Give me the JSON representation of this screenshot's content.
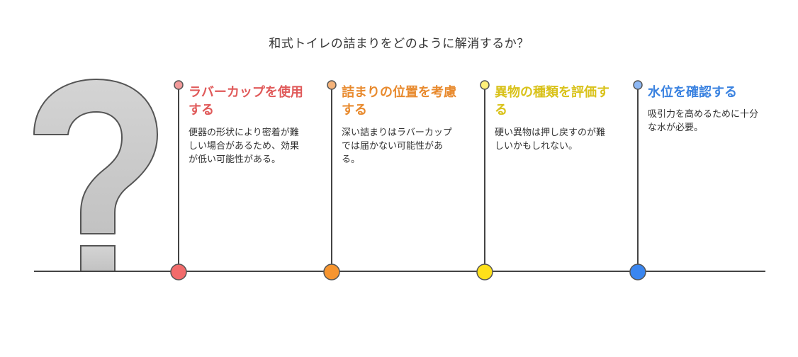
{
  "title": "和式トイレの詰まりをどのように解消するか？",
  "steps": [
    {
      "heading": "ラバーカップを使用する",
      "description": "便器の形状により密着が難しい場合があるため、効果が低い可能性がある。",
      "color": "#e05a5a",
      "node_color": "#f26b6b",
      "pin_color": "#f29a9a"
    },
    {
      "heading": "詰まりの位置を考慮する",
      "description": "深い詰まりはラバーカップでは届かない可能性がある。",
      "color": "#e88a2e",
      "node_color": "#f7952f",
      "pin_color": "#f5b37a"
    },
    {
      "heading": "異物の種類を評価する",
      "description": "硬い異物は押し戻すのが難しいかもしれない。",
      "color": "#d9c21a",
      "node_color": "#ffe11a",
      "pin_color": "#fff07a"
    },
    {
      "heading": "水位を確認する",
      "description": "吸引力を高めるために十分な水が必要。",
      "color": "#3a82e0",
      "node_color": "#3a86f0",
      "pin_color": "#8db8f5"
    }
  ]
}
